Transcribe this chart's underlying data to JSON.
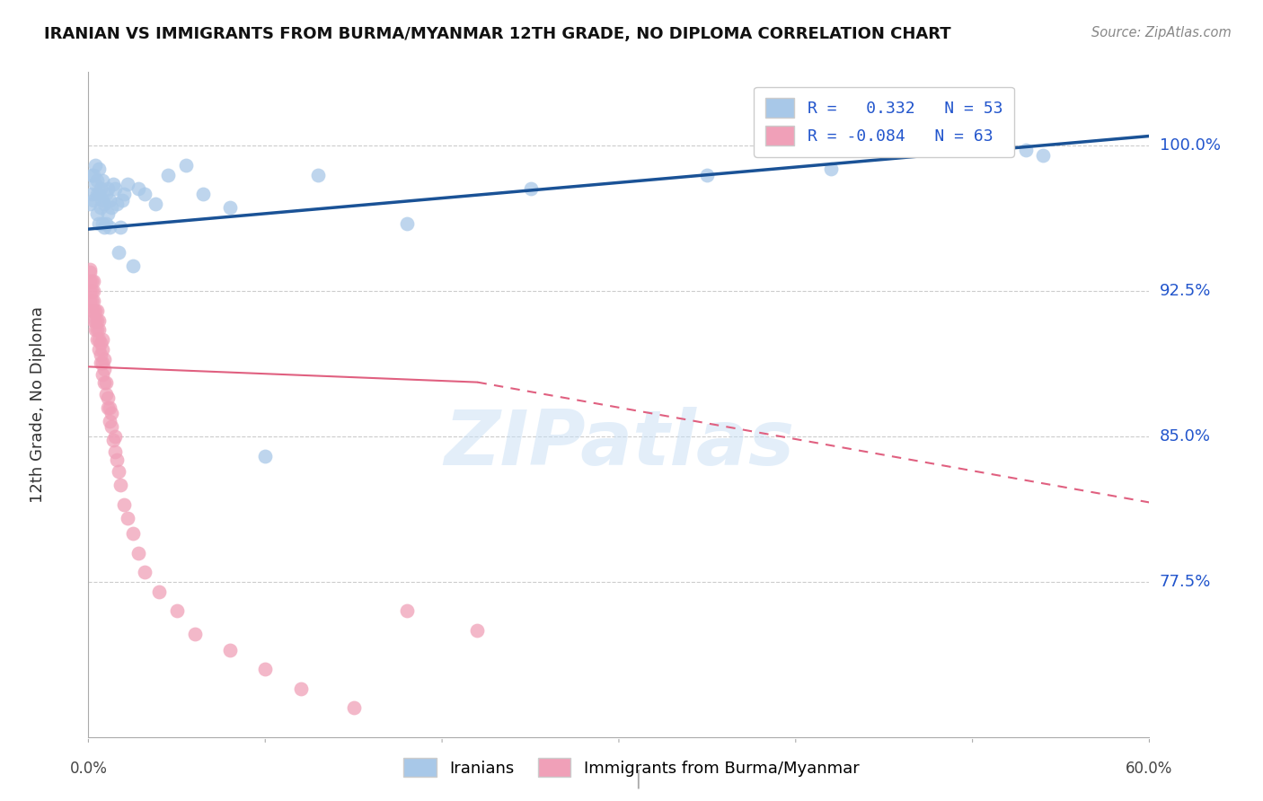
{
  "title": "IRANIAN VS IMMIGRANTS FROM BURMA/MYANMAR 12TH GRADE, NO DIPLOMA CORRELATION CHART",
  "source": "Source: ZipAtlas.com",
  "ylabel": "12th Grade, No Diploma",
  "xmin": 0.0,
  "xmax": 0.6,
  "ymin": 0.695,
  "ymax": 1.038,
  "ytick_labels": [
    "100.0%",
    "92.5%",
    "85.0%",
    "77.5%"
  ],
  "ytick_values": [
    1.0,
    0.925,
    0.85,
    0.775
  ],
  "color_blue": "#a8c8e8",
  "color_pink": "#f0a0b8",
  "trendline_blue": "#1a5296",
  "trendline_pink": "#e06080",
  "blue_r": 0.332,
  "blue_n": 53,
  "pink_r": -0.084,
  "pink_n": 63,
  "watermark": "ZIPatlas",
  "background_color": "#ffffff",
  "grid_color": "#cccccc",
  "blue_scatter_x": [
    0.001,
    0.002,
    0.002,
    0.003,
    0.003,
    0.004,
    0.004,
    0.005,
    0.005,
    0.005,
    0.006,
    0.006,
    0.006,
    0.007,
    0.007,
    0.008,
    0.008,
    0.008,
    0.009,
    0.009,
    0.01,
    0.01,
    0.011,
    0.011,
    0.012,
    0.012,
    0.013,
    0.014,
    0.015,
    0.016,
    0.017,
    0.018,
    0.019,
    0.02,
    0.022,
    0.025,
    0.028,
    0.032,
    0.038,
    0.045,
    0.055,
    0.065,
    0.08,
    0.1,
    0.13,
    0.18,
    0.25,
    0.35,
    0.42,
    0.48,
    0.52,
    0.53,
    0.54
  ],
  "blue_scatter_y": [
    0.97,
    0.975,
    0.985,
    0.972,
    0.985,
    0.98,
    0.99,
    0.965,
    0.975,
    0.982,
    0.96,
    0.975,
    0.988,
    0.968,
    0.978,
    0.96,
    0.972,
    0.982,
    0.958,
    0.97,
    0.96,
    0.975,
    0.965,
    0.978,
    0.958,
    0.972,
    0.968,
    0.98,
    0.978,
    0.97,
    0.945,
    0.958,
    0.972,
    0.975,
    0.98,
    0.938,
    0.978,
    0.975,
    0.97,
    0.985,
    0.99,
    0.975,
    0.968,
    0.84,
    0.985,
    0.96,
    0.978,
    0.985,
    0.988,
    1.0,
    1.0,
    0.998,
    0.995
  ],
  "pink_scatter_x": [
    0.001,
    0.001,
    0.001,
    0.001,
    0.001,
    0.002,
    0.002,
    0.002,
    0.002,
    0.003,
    0.003,
    0.003,
    0.003,
    0.003,
    0.004,
    0.004,
    0.004,
    0.005,
    0.005,
    0.005,
    0.005,
    0.006,
    0.006,
    0.006,
    0.006,
    0.007,
    0.007,
    0.007,
    0.008,
    0.008,
    0.008,
    0.008,
    0.009,
    0.009,
    0.009,
    0.01,
    0.01,
    0.011,
    0.011,
    0.012,
    0.012,
    0.013,
    0.013,
    0.014,
    0.015,
    0.015,
    0.016,
    0.017,
    0.018,
    0.02,
    0.022,
    0.025,
    0.028,
    0.032,
    0.04,
    0.05,
    0.06,
    0.08,
    0.1,
    0.12,
    0.15,
    0.18,
    0.22
  ],
  "pink_scatter_y": [
    0.92,
    0.925,
    0.93,
    0.935,
    0.936,
    0.915,
    0.92,
    0.925,
    0.93,
    0.91,
    0.915,
    0.92,
    0.925,
    0.93,
    0.905,
    0.91,
    0.915,
    0.9,
    0.905,
    0.91,
    0.915,
    0.895,
    0.9,
    0.905,
    0.91,
    0.888,
    0.892,
    0.898,
    0.882,
    0.888,
    0.895,
    0.9,
    0.878,
    0.885,
    0.89,
    0.872,
    0.878,
    0.865,
    0.87,
    0.858,
    0.865,
    0.855,
    0.862,
    0.848,
    0.842,
    0.85,
    0.838,
    0.832,
    0.825,
    0.815,
    0.808,
    0.8,
    0.79,
    0.78,
    0.77,
    0.76,
    0.748,
    0.74,
    0.73,
    0.72,
    0.71,
    0.76,
    0.75
  ]
}
